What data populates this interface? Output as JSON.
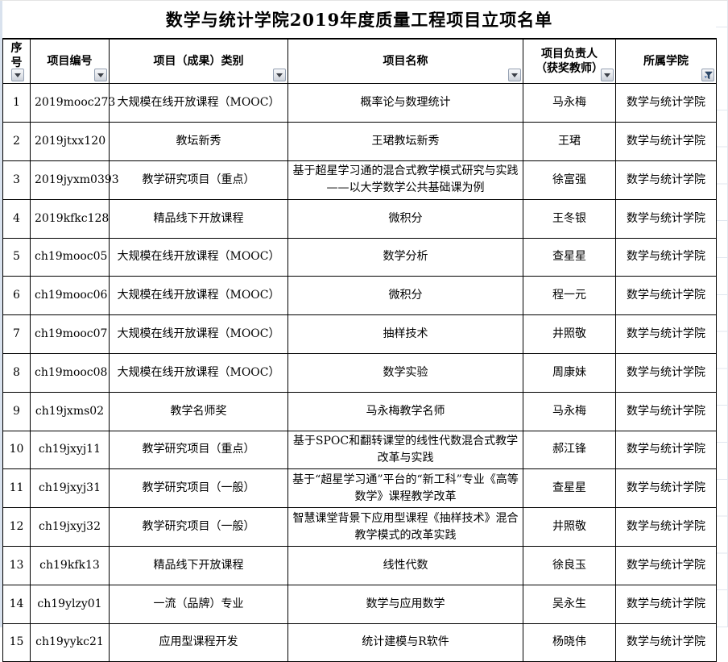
{
  "title": "数学与统计学院2019年度质量工程项目立项名单",
  "table": {
    "columns": [
      "row-index-cell",
      "project-id-cell",
      "category-cell",
      "project-name-cell",
      "leader-cell",
      "college-cell"
    ],
    "headers": [
      {
        "label": "序号",
        "filter": "dropdown"
      },
      {
        "label": "项目编号",
        "filter": "dropdown"
      },
      {
        "label": "项目（成果）类别",
        "filter": "dropdown"
      },
      {
        "label": "项目名称",
        "filter": "dropdown"
      },
      {
        "label": "项目负责人（获奖教师）",
        "label_line1": "项目负责人",
        "label_line2": "（获奖教师）",
        "filter": "dropdown"
      },
      {
        "label": "所属学院",
        "filter": "funnel-active"
      }
    ],
    "rows": [
      [
        "1",
        "2019mooc273",
        "大规模在线开放课程（MOOC）",
        "概率论与数理统计",
        "马永梅",
        "数学与统计学院"
      ],
      [
        "2",
        "2019jtxx120",
        "教坛新秀",
        "王珺教坛新秀",
        "王珺",
        "数学与统计学院"
      ],
      [
        "3",
        "2019jyxm0393",
        "教学研究项目（重点）",
        "基于超星学习通的混合式教学模式研究与实践——以大学数学公共基础课为例",
        "徐富强",
        "数学与统计学院"
      ],
      [
        "4",
        "2019kfkc128",
        "精品线下开放课程",
        "微积分",
        "王冬银",
        "数学与统计学院"
      ],
      [
        "5",
        "ch19mooc05",
        "大规模在线开放课程（MOOC）",
        "数学分析",
        "查星星",
        "数学与统计学院"
      ],
      [
        "6",
        "ch19mooc06",
        "大规模在线开放课程（MOOC）",
        "微积分",
        "程一元",
        "数学与统计学院"
      ],
      [
        "7",
        "ch19mooc07",
        "大规模在线开放课程（MOOC）",
        "抽样技术",
        "井照敬",
        "数学与统计学院"
      ],
      [
        "8",
        "ch19mooc08",
        "大规模在线开放课程（MOOC）",
        "数学实验",
        "周康妹",
        "数学与统计学院"
      ],
      [
        "9",
        "ch19jxms02",
        "教学名师奖",
        "马永梅教学名师",
        "马永梅",
        "数学与统计学院"
      ],
      [
        "10",
        "ch19jxyj11",
        "教学研究项目（重点）",
        "基于SPOC和翻转课堂的线性代数混合式教学改革与实践",
        "郝江锋",
        "数学与统计学院"
      ],
      [
        "11",
        "ch19jxyj31",
        "教学研究项目（一般）",
        "基于“超星学习通”平台的“新工科”专业《高等数学》课程教学改革",
        "查星星",
        "数学与统计学院"
      ],
      [
        "12",
        "ch19jxyj32",
        "教学研究项目（一般）",
        "智慧课堂背景下应用型课程《抽样技术》混合教学模式的改革实践",
        "井照敬",
        "数学与统计学院"
      ],
      [
        "13",
        "ch19kfk13",
        "精品线下开放课程",
        "线性代数",
        "徐良玉",
        "数学与统计学院"
      ],
      [
        "14",
        "ch19ylzy01",
        "一流（品牌）专业",
        "数学与应用数学",
        "吴永生",
        "数学与统计学院"
      ],
      [
        "15",
        "ch19yykc21",
        "应用型课程开发",
        "统计建模与R软件",
        "杨晓伟",
        "数学与统计学院"
      ]
    ]
  }
}
